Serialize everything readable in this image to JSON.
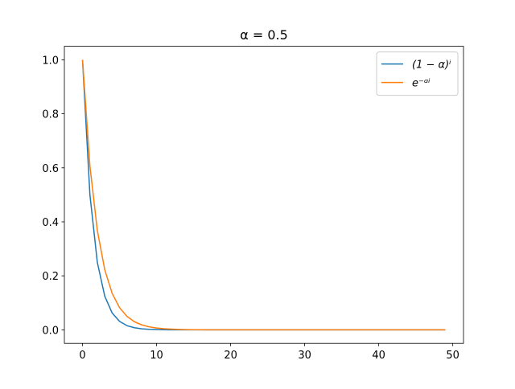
{
  "chart_data": {
    "type": "line",
    "title": "α = 0.5",
    "x": [
      0,
      1,
      2,
      3,
      4,
      5,
      6,
      7,
      8,
      9,
      10,
      11,
      12,
      13,
      14,
      15,
      16,
      17,
      18,
      19,
      20,
      21,
      22,
      23,
      24,
      25,
      26,
      27,
      28,
      29,
      30,
      31,
      32,
      33,
      34,
      35,
      36,
      37,
      38,
      39,
      40,
      41,
      42,
      43,
      44,
      45,
      46,
      47,
      48,
      49
    ],
    "series": [
      {
        "name": "(1 − α)ⁱ",
        "color": "#1f77b4",
        "values": [
          1,
          0.5,
          0.25,
          0.125,
          0.0625,
          0.0313,
          0.0156,
          0.0078,
          0.0039,
          0.002,
          0.001,
          0.0005,
          0.0002,
          0.0001,
          0,
          0,
          0,
          0,
          0,
          0,
          0,
          0,
          0,
          0,
          0,
          0,
          0,
          0,
          0,
          0,
          0,
          0,
          0,
          0,
          0,
          0,
          0,
          0,
          0,
          0,
          0,
          0,
          0,
          0,
          0,
          0,
          0,
          0,
          0,
          0
        ]
      },
      {
        "name": "e⁻ᵅⁱ",
        "color": "#ff7f0e",
        "values": [
          1,
          0.6065,
          0.3679,
          0.2231,
          0.1353,
          0.0821,
          0.0498,
          0.0302,
          0.0183,
          0.0111,
          0.0067,
          0.0041,
          0.0025,
          0.0015,
          0.0009,
          0.0006,
          0.0003,
          0.0002,
          0.0001,
          0.0001,
          0,
          0,
          0,
          0,
          0,
          0,
          0,
          0,
          0,
          0,
          0,
          0,
          0,
          0,
          0,
          0,
          0,
          0,
          0,
          0,
          0,
          0,
          0,
          0,
          0,
          0,
          0,
          0,
          0,
          0
        ]
      }
    ],
    "xlim": [
      -2.45,
      51.45
    ],
    "ylim": [
      -0.05,
      1.05
    ],
    "xticks": [
      0,
      10,
      20,
      30,
      40,
      50
    ],
    "yticks": [
      {
        "value": 0,
        "label": "0.0"
      },
      {
        "value": 0.2,
        "label": "0.2"
      },
      {
        "value": 0.4,
        "label": "0.4"
      },
      {
        "value": 0.6,
        "label": "0.6"
      },
      {
        "value": 0.8,
        "label": "0.8"
      },
      {
        "value": 1,
        "label": "1.0"
      }
    ],
    "grid": false,
    "legend": "upper right"
  }
}
